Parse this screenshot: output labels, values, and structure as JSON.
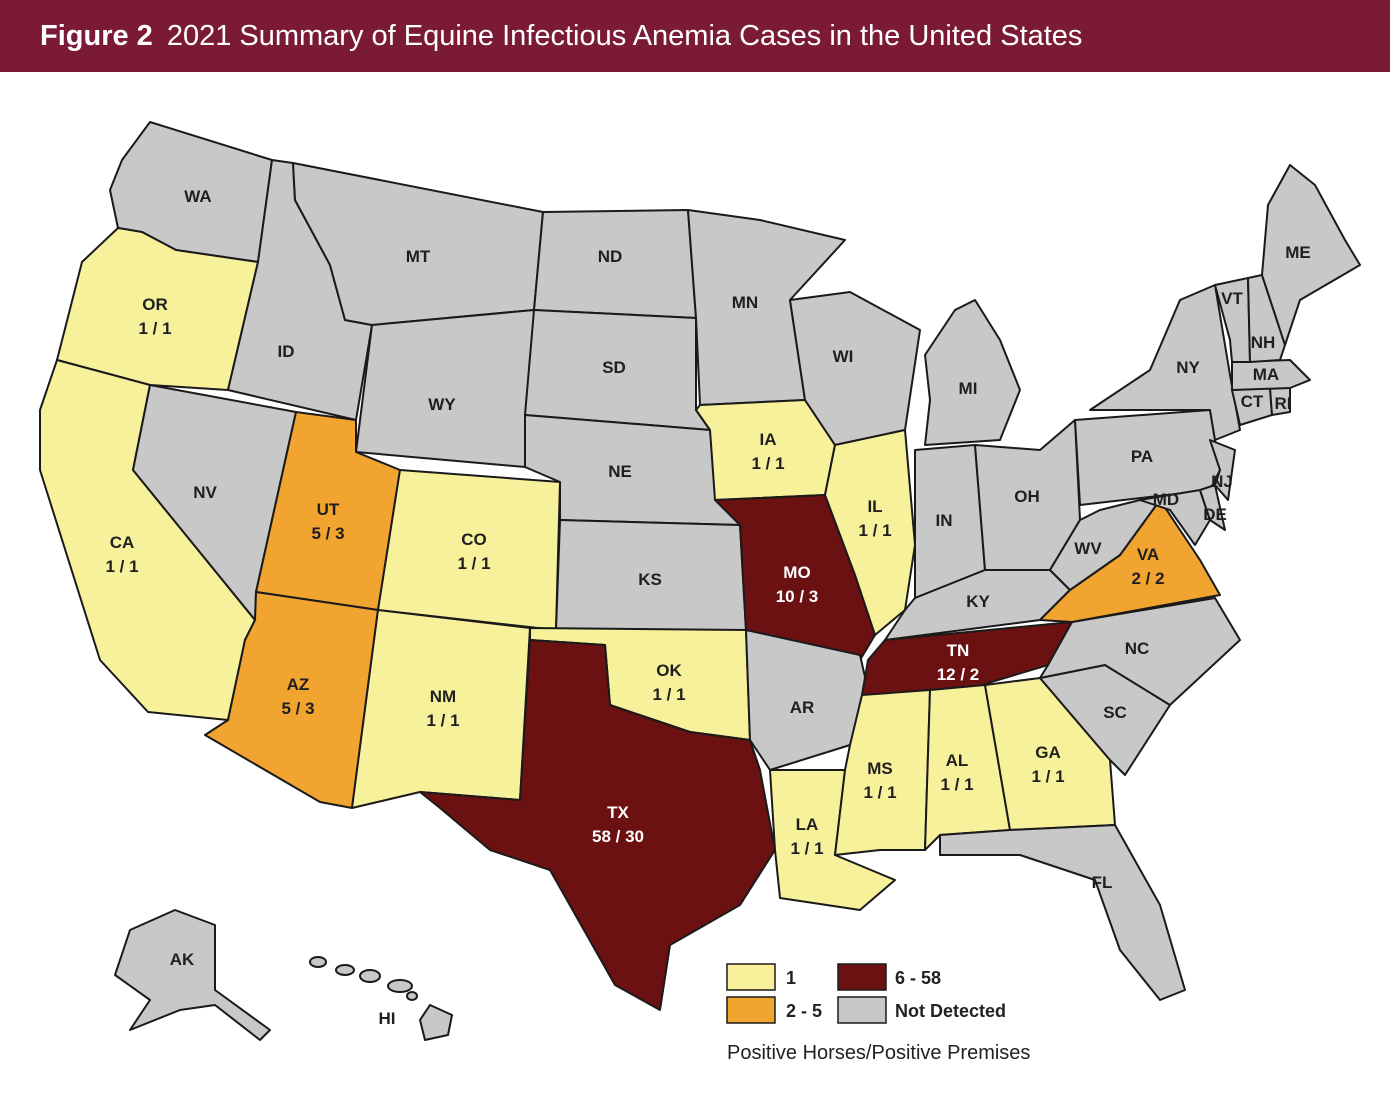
{
  "header": {
    "figure_label": "Figure 2",
    "title": "2021 Summary of Equine Infectious Anemia Cases in the United States"
  },
  "colors": {
    "cat_1": "#f8f19b",
    "cat_2_5": "#f2a431",
    "cat_6_58": "#6b1111",
    "not_detected": "#c8c8c8",
    "banner": "#7b1a36"
  },
  "states": {
    "WA": {
      "label": "WA",
      "value": ""
    },
    "OR": {
      "label": "OR",
      "value": "1 / 1"
    },
    "CA": {
      "label": "CA",
      "value": "1 / 1"
    },
    "ID": {
      "label": "ID",
      "value": ""
    },
    "NV": {
      "label": "NV",
      "value": ""
    },
    "MT": {
      "label": "MT",
      "value": ""
    },
    "WY": {
      "label": "WY",
      "value": ""
    },
    "UT": {
      "label": "UT",
      "value": "5 / 3"
    },
    "AZ": {
      "label": "AZ",
      "value": "5 / 3"
    },
    "CO": {
      "label": "CO",
      "value": "1 / 1"
    },
    "NM": {
      "label": "NM",
      "value": "1 / 1"
    },
    "ND": {
      "label": "ND",
      "value": ""
    },
    "SD": {
      "label": "SD",
      "value": ""
    },
    "NE": {
      "label": "NE",
      "value": ""
    },
    "KS": {
      "label": "KS",
      "value": ""
    },
    "OK": {
      "label": "OK",
      "value": "1 / 1"
    },
    "TX": {
      "label": "TX",
      "value": "58 / 30"
    },
    "MN": {
      "label": "MN",
      "value": ""
    },
    "IA": {
      "label": "IA",
      "value": "1 / 1"
    },
    "MO": {
      "label": "MO",
      "value": "10 / 3"
    },
    "AR": {
      "label": "AR",
      "value": ""
    },
    "LA": {
      "label": "LA",
      "value": "1 / 1"
    },
    "WI": {
      "label": "WI",
      "value": ""
    },
    "IL": {
      "label": "IL",
      "value": "1 / 1"
    },
    "MI": {
      "label": "MI",
      "value": ""
    },
    "IN": {
      "label": "IN",
      "value": ""
    },
    "OH": {
      "label": "OH",
      "value": ""
    },
    "KY": {
      "label": "KY",
      "value": ""
    },
    "TN": {
      "label": "TN",
      "value": "12 / 2"
    },
    "MS": {
      "label": "MS",
      "value": "1 / 1"
    },
    "AL": {
      "label": "AL",
      "value": "1 / 1"
    },
    "GA": {
      "label": "GA",
      "value": "1 / 1"
    },
    "FL": {
      "label": "FL",
      "value": ""
    },
    "SC": {
      "label": "SC",
      "value": ""
    },
    "NC": {
      "label": "NC",
      "value": ""
    },
    "VA": {
      "label": "VA",
      "value": "2 / 2"
    },
    "WV": {
      "label": "WV",
      "value": ""
    },
    "PA": {
      "label": "PA",
      "value": ""
    },
    "NY": {
      "label": "NY",
      "value": ""
    },
    "MD": {
      "label": "MD",
      "value": ""
    },
    "DE": {
      "label": "DE",
      "value": ""
    },
    "NJ": {
      "label": "NJ",
      "value": ""
    },
    "CT": {
      "label": "CT",
      "value": ""
    },
    "RI": {
      "label": "RI",
      "value": ""
    },
    "MA": {
      "label": "MA",
      "value": ""
    },
    "VT": {
      "label": "VT",
      "value": ""
    },
    "NH": {
      "label": "NH",
      "value": ""
    },
    "ME": {
      "label": "ME",
      "value": ""
    },
    "AK": {
      "label": "AK",
      "value": ""
    },
    "HI": {
      "label": "HI",
      "value": ""
    }
  },
  "legend": {
    "items": [
      {
        "label": "1"
      },
      {
        "label": "2 - 5"
      },
      {
        "label": "6 - 58"
      },
      {
        "label": "Not Detected"
      }
    ]
  },
  "footnote": "Positive Horses/Positive Premises"
}
